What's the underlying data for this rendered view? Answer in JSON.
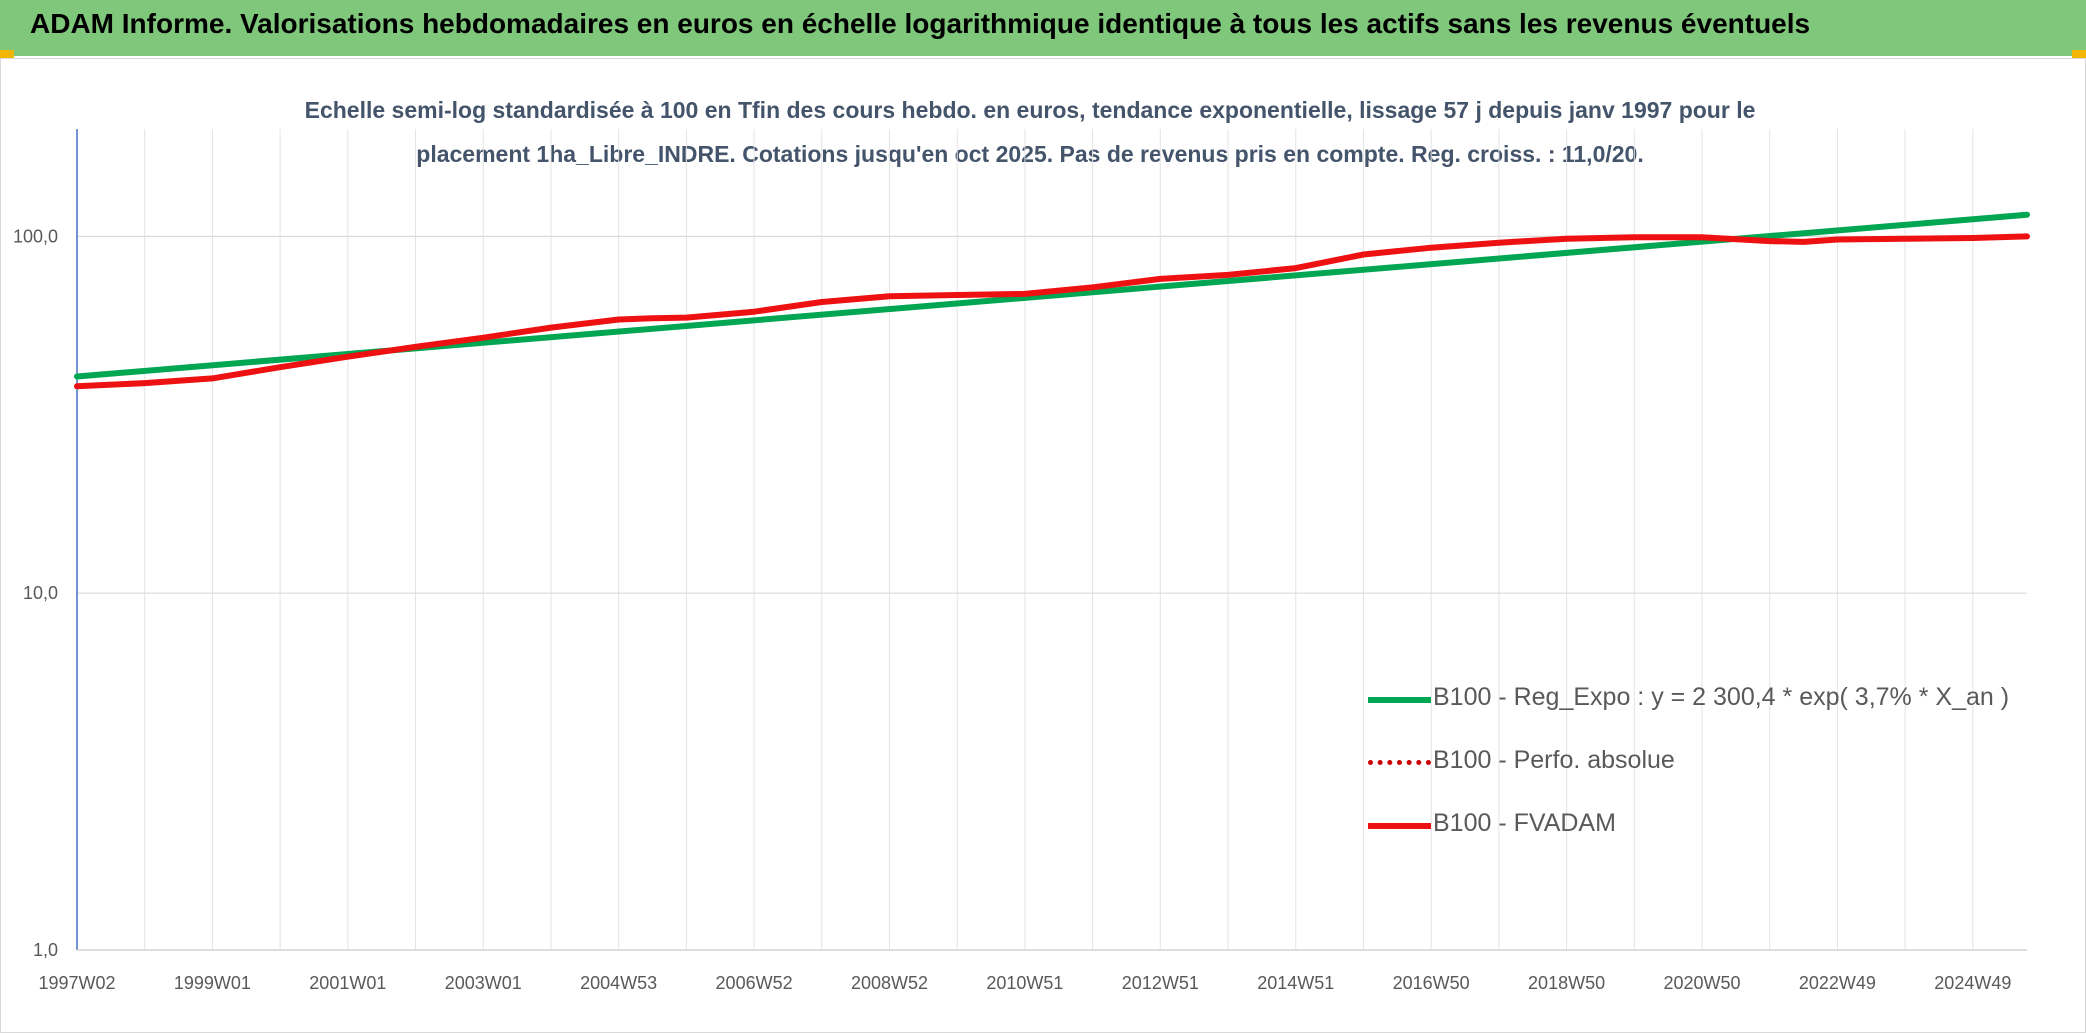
{
  "header": {
    "title": "ADAM Informe. Valorisations hebdomadaires en euros en échelle logarithmique identique à tous les actifs sans les revenus éventuels"
  },
  "colors": {
    "header_bg": "#7fc77a",
    "corner_accent": "#f2b705",
    "trend": "#00a651",
    "fvadam": "#ee1111",
    "perfo": "#cc0000",
    "axis_text": "#595959"
  },
  "chart_data": {
    "type": "line",
    "title": "Echelle semi-log standardisée à 100 en Tfin des cours hebdo. en euros, tendance exponentielle, lissage 57 j depuis janv 1997 pour le placement 1ha_Libre_INDRE. Cotations jusqu'en oct 2025. Pas de revenus pris en compte. Reg. croiss. : 11,0/20.",
    "yscale": "log",
    "ylim": [
      1,
      200
    ],
    "yticks": [
      {
        "value": 1,
        "label": "1,0"
      },
      {
        "value": 10,
        "label": "10,0"
      },
      {
        "value": 100,
        "label": "100,0"
      }
    ],
    "xlim": [
      1997.0,
      2025.8
    ],
    "xticks": [
      {
        "x": 1997.0,
        "label": "1997W02"
      },
      {
        "x": 1999.0,
        "label": "1999W01"
      },
      {
        "x": 2001.0,
        "label": "2001W01"
      },
      {
        "x": 2003.0,
        "label": "2003W01"
      },
      {
        "x": 2005.0,
        "label": "2004W53"
      },
      {
        "x": 2007.0,
        "label": "2006W52"
      },
      {
        "x": 2009.0,
        "label": "2008W52"
      },
      {
        "x": 2011.0,
        "label": "2010W51"
      },
      {
        "x": 2013.0,
        "label": "2012W51"
      },
      {
        "x": 2015.0,
        "label": "2014W51"
      },
      {
        "x": 2017.0,
        "label": "2016W50"
      },
      {
        "x": 2019.0,
        "label": "2018W50"
      },
      {
        "x": 2021.0,
        "label": "2020W50"
      },
      {
        "x": 2023.0,
        "label": "2022W49"
      },
      {
        "x": 2025.0,
        "label": "2024W49"
      }
    ],
    "grid": true,
    "legend_position": "bottom-right",
    "series": [
      {
        "name": "B100 - Reg_Expo : y = 2 300,4 * exp( 3,7% *  X_an )",
        "style": "solid",
        "color": "#00a651",
        "x": [
          1997.0,
          2025.8
        ],
        "y": [
          40.5,
          115.0
        ]
      },
      {
        "name": "B100 - Perfo. absolue",
        "style": "dotted",
        "color": "#cc0000",
        "x": [],
        "y": []
      },
      {
        "name": "B100 - FVADAM",
        "style": "solid",
        "color": "#ee1111",
        "x": [
          1997.0,
          1998.0,
          1999.0,
          2000.0,
          2001.0,
          2002.0,
          2003.0,
          2004.0,
          2005.0,
          2005.5,
          2006.0,
          2007.0,
          2008.0,
          2009.0,
          2010.0,
          2011.0,
          2012.0,
          2013.0,
          2014.0,
          2015.0,
          2016.0,
          2017.0,
          2018.0,
          2019.0,
          2020.0,
          2021.0,
          2022.0,
          2022.5,
          2023.0,
          2024.0,
          2025.0,
          2025.8
        ],
        "y": [
          38.0,
          38.8,
          40.0,
          43.0,
          46.0,
          49.0,
          52.0,
          55.5,
          58.5,
          59.0,
          59.2,
          61.5,
          65.5,
          68.0,
          68.5,
          69.0,
          72.0,
          76.0,
          78.0,
          81.5,
          89.0,
          93.0,
          96.0,
          98.5,
          99.5,
          99.5,
          97.0,
          96.5,
          98.0,
          98.5,
          99.0,
          100.0
        ]
      }
    ]
  }
}
